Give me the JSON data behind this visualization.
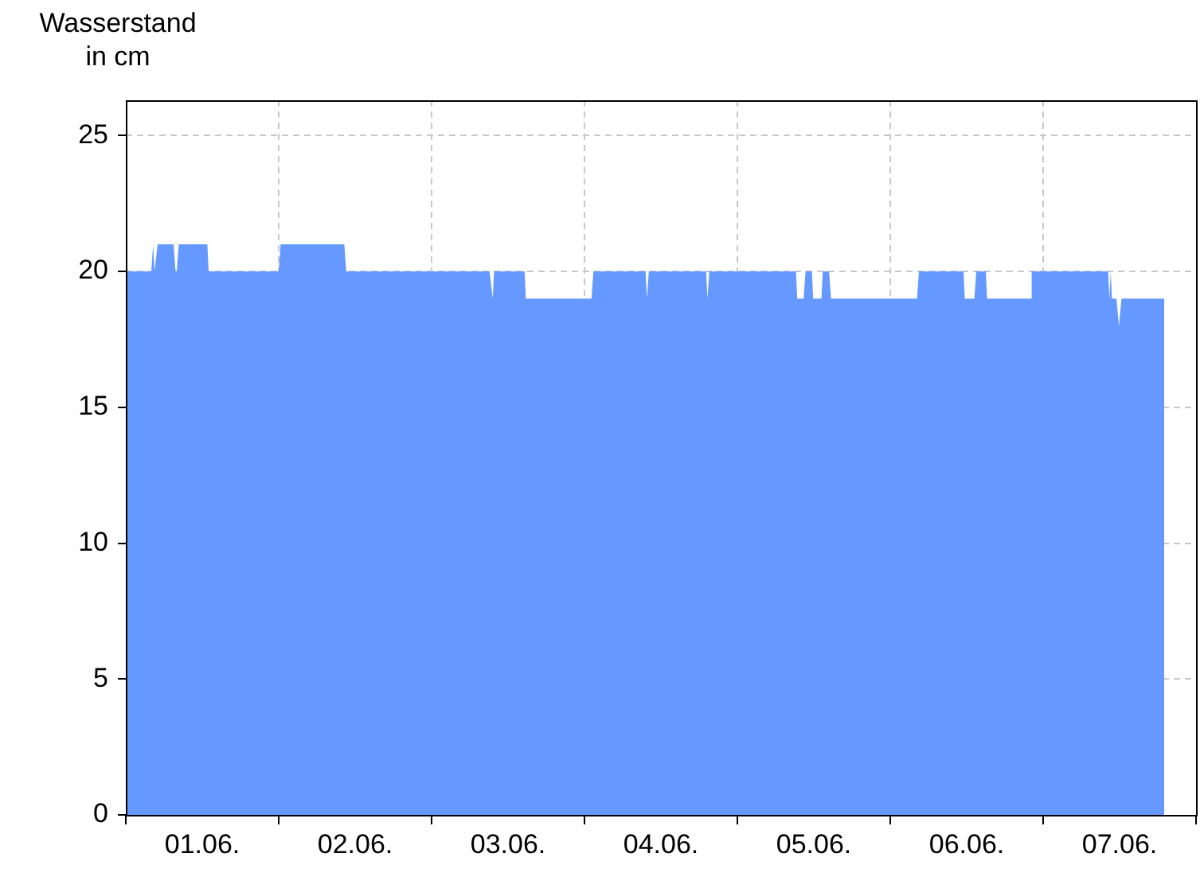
{
  "chart_data": {
    "type": "area",
    "ylabel": "Wasserstand in cm",
    "color": "#6699ff",
    "x": [
      "--06-01T00:00",
      "--06-01T04:00",
      "--06-01T04:18",
      "--06-01T04:30",
      "--06-01T05:00",
      "--06-01T07:30",
      "--06-01T07:48",
      "--06-01T08:00",
      "--06-01T08:18",
      "--06-01T12:48",
      "--06-01T13:00",
      "--06-02T00:00",
      "--06-02T00:18",
      "--06-02T10:18",
      "--06-02T10:36",
      "--06-03T09:06",
      "--06-03T09:36",
      "--06-03T09:48",
      "--06-03T14:36",
      "--06-03T14:48",
      "--06-04T01:06",
      "--06-04T01:24",
      "--06-04T09:36",
      "--06-04T09:48",
      "--06-04T10:06",
      "--06-04T19:06",
      "--06-04T19:18",
      "--06-04T19:36",
      "--06-05T09:12",
      "--06-05T09:24",
      "--06-05T10:24",
      "--06-05T10:42",
      "--06-05T11:42",
      "--06-05T11:54",
      "--06-05T13:12",
      "--06-05T13:24",
      "--06-05T14:24",
      "--06-05T14:42",
      "--06-06T04:12",
      "--06-06T04:30",
      "--06-06T11:30",
      "--06-06T11:42",
      "--06-06T13:12",
      "--06-06T13:30",
      "--06-06T15:00",
      "--06-06T15:12",
      "--06-06T22:00",
      "--06-06T22:12",
      "--06-07T10:12",
      "--06-07T10:24",
      "--06-07T10:36",
      "--06-07T10:48",
      "--06-07T11:30",
      "--06-07T11:54",
      "--06-07T12:18",
      "--06-07T19:00"
    ],
    "values": [
      20,
      20,
      21,
      20,
      21,
      21,
      20,
      20,
      21,
      21,
      20,
      20,
      21,
      21,
      20,
      20,
      19,
      20,
      20,
      19,
      19,
      20,
      20,
      19,
      20,
      20,
      19,
      20,
      20,
      19,
      19,
      20,
      20,
      19,
      19,
      20,
      20,
      19,
      19,
      20,
      20,
      19,
      19,
      20,
      20,
      19,
      19,
      20,
      20,
      19,
      20,
      19,
      19,
      18,
      19,
      19
    ],
    "xlim": [
      "--06-01T00:00",
      "--06-08T00:00"
    ],
    "xticks": [
      {
        "value": "--06-01T00:00",
        "label": null
      },
      {
        "value": "--06-01T12:00",
        "label": "01.06."
      },
      {
        "value": "--06-02T00:00",
        "label": null
      },
      {
        "value": "--06-02T12:00",
        "label": "02.06."
      },
      {
        "value": "--06-03T00:00",
        "label": null
      },
      {
        "value": "--06-03T12:00",
        "label": "03.06."
      },
      {
        "value": "--06-04T00:00",
        "label": null
      },
      {
        "value": "--06-04T12:00",
        "label": "04.06."
      },
      {
        "value": "--06-05T00:00",
        "label": null
      },
      {
        "value": "--06-05T12:00",
        "label": "05.06."
      },
      {
        "value": "--06-06T00:00",
        "label": null
      },
      {
        "value": "--06-06T12:00",
        "label": "06.06."
      },
      {
        "value": "--06-07T00:00",
        "label": null
      },
      {
        "value": "--06-07T12:00",
        "label": "07.06."
      },
      {
        "value": "--06-08T00:00",
        "label": null
      }
    ],
    "ylim": [
      0,
      26.3
    ],
    "yticks": [
      0,
      5,
      10,
      15,
      20,
      25
    ],
    "grid": true,
    "legend": false
  }
}
